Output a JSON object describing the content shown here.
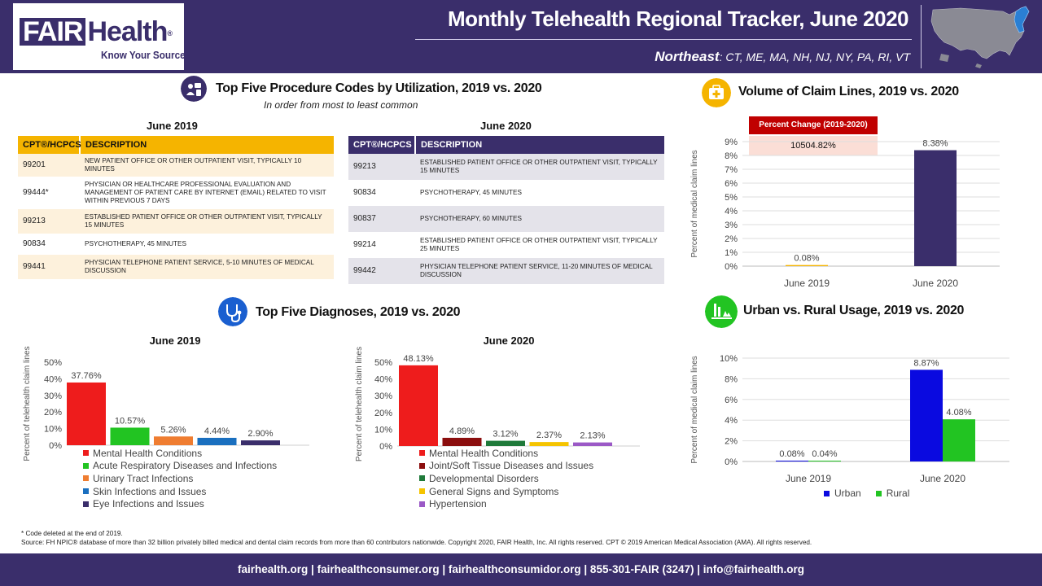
{
  "header": {
    "logo_left": "FAIR",
    "logo_right": "Health",
    "logo_reg": "®",
    "logo_tagline": "Know Your Source",
    "title": "Monthly Telehealth Regional Tracker, June 2020",
    "region_name": "Northeast",
    "region_states": ": CT, ME, MA, NH, NJ, NY, PA, RI, VT"
  },
  "procedures": {
    "title": "Top Five Procedure Codes by Utilization, 2019 vs. 2020",
    "subtitle": "In order from most to least common",
    "col_code": "CPT®/HCPCS",
    "col_desc": "DESCRIPTION",
    "june2019": {
      "heading": "June 2019",
      "rows": [
        {
          "code": "99201",
          "desc": "NEW PATIENT OFFICE OR OTHER OUTPATIENT VISIT, TYPICALLY 10 MINUTES"
        },
        {
          "code": "99444*",
          "desc": "PHYSICIAN OR HEALTHCARE PROFESSIONAL EVALUATION AND MANAGEMENT OF PATIENT CARE BY INTERNET (EMAIL) RELATED TO VISIT WITHIN PREVIOUS 7 DAYS"
        },
        {
          "code": "99213",
          "desc": "ESTABLISHED PATIENT OFFICE OR OTHER OUTPATIENT VISIT, TYPICALLY 15 MINUTES"
        },
        {
          "code": "90834",
          "desc": "PSYCHOTHERAPY, 45 MINUTES"
        },
        {
          "code": "99441",
          "desc": "PHYSICIAN TELEPHONE PATIENT SERVICE, 5-10 MINUTES OF MEDICAL DISCUSSION"
        }
      ]
    },
    "june2020": {
      "heading": "June 2020",
      "rows": [
        {
          "code": "99213",
          "desc": "ESTABLISHED PATIENT OFFICE OR OTHER OUTPATIENT VISIT, TYPICALLY 15 MINUTES"
        },
        {
          "code": "90834",
          "desc": "PSYCHOTHERAPY, 45 MINUTES"
        },
        {
          "code": "90837",
          "desc": "PSYCHOTHERAPY, 60 MINUTES"
        },
        {
          "code": "99214",
          "desc": "ESTABLISHED PATIENT OFFICE OR OTHER OUTPATIENT VISIT, TYPICALLY 25 MINUTES"
        },
        {
          "code": "99442",
          "desc": "PHYSICIAN TELEPHONE PATIENT SERVICE, 11-20 MINUTES OF MEDICAL DISCUSSION"
        }
      ]
    }
  },
  "volume": {
    "title": "Volume of Claim Lines, 2019 vs. 2020",
    "percent_change_label": "Percent Change (2019-2020)",
    "percent_change_value": "10504.82%"
  },
  "diagnoses": {
    "title": "Top Five Diagnoses, 2019 vs. 2020"
  },
  "urban_rural": {
    "title": "Urban vs. Rural Usage, 2019 vs. 2020"
  },
  "colors": {
    "brand": "#3a2e6b",
    "gold": "#f5b400",
    "red": "#c00000"
  },
  "chart_data": [
    {
      "id": "diag2019",
      "type": "bar",
      "title": "June 2019",
      "ylabel": "Percent of telehealth claim lines",
      "ylim": [
        0,
        50
      ],
      "yticks": [
        "0%",
        "10%",
        "20%",
        "30%",
        "40%",
        "50%"
      ],
      "categories": [
        "Mental Health Conditions",
        "Acute Respiratory Diseases and Infections",
        "Urinary Tract Infections",
        "Skin Infections and Issues",
        "Eye Infections and Issues"
      ],
      "values": [
        37.76,
        10.57,
        5.26,
        4.44,
        2.9
      ],
      "labels": [
        "37.76%",
        "10.57%",
        "5.26%",
        "4.44%",
        "2.90%"
      ],
      "colors": [
        "#ee1c1c",
        "#22c422",
        "#ef7d31",
        "#1a6fbf",
        "#3a2e6b"
      ]
    },
    {
      "id": "diag2020",
      "type": "bar",
      "title": "June 2020",
      "ylabel": "Percent of telehealth claim lines",
      "ylim": [
        0,
        50
      ],
      "yticks": [
        "0%",
        "10%",
        "20%",
        "30%",
        "40%",
        "50%"
      ],
      "categories": [
        "Mental Health Conditions",
        "Joint/Soft Tissue Diseases and Issues",
        "Developmental Disorders",
        "General Signs and Symptoms",
        "Hypertension"
      ],
      "values": [
        48.13,
        4.89,
        3.12,
        2.37,
        2.13
      ],
      "labels": [
        "48.13%",
        "4.89%",
        "3.12%",
        "2.37%",
        "2.13%"
      ],
      "colors": [
        "#ee1c1c",
        "#8b0e0e",
        "#1f7a3a",
        "#f5c400",
        "#9b59c6"
      ]
    },
    {
      "id": "volume",
      "type": "bar",
      "title": "Volume of Claim Lines, 2019 vs. 2020",
      "ylabel": "Percent of medical claim lines",
      "ylim": [
        0,
        9
      ],
      "yticks": [
        "0%",
        "1%",
        "2%",
        "3%",
        "4%",
        "5%",
        "6%",
        "7%",
        "8%",
        "9%"
      ],
      "categories": [
        "June 2019",
        "June 2020"
      ],
      "values": [
        0.08,
        8.38
      ],
      "labels": [
        "0.08%",
        "8.38%"
      ],
      "colors": [
        "#f5b400",
        "#3a2e6b"
      ]
    },
    {
      "id": "urbanrural",
      "type": "bar",
      "title": "Urban vs. Rural Usage, 2019 vs. 2020",
      "ylabel": "Percent of medical claim lines",
      "ylim": [
        0,
        10
      ],
      "yticks": [
        "0%",
        "2%",
        "4%",
        "6%",
        "8%",
        "10%"
      ],
      "categories": [
        "June 2019",
        "June 2020"
      ],
      "series": [
        {
          "name": "Urban",
          "values": [
            0.08,
            8.87
          ],
          "labels": [
            "0.08%",
            "8.87%"
          ],
          "color": "#0a0ae0"
        },
        {
          "name": "Rural",
          "values": [
            0.04,
            4.08
          ],
          "labels": [
            "0.04%",
            "4.08%"
          ],
          "color": "#22c422"
        }
      ]
    }
  ],
  "notes": {
    "deleted": "* Code deleted at the end of 2019.",
    "source": "Source: FH NPIC® database of more than 32 billion privately billed medical and dental claim records from more than 60 contributors nationwide. Copyright 2020, FAIR Health, Inc. All rights reserved. CPT © 2019 American Medical Association (AMA). All rights reserved."
  },
  "footer": {
    "text": "fairhealth.org  |  fairhealthconsumer.org  |  fairhealthconsumidor.org  |  855-301-FAIR (3247)  |  info@fairhealth.org"
  }
}
